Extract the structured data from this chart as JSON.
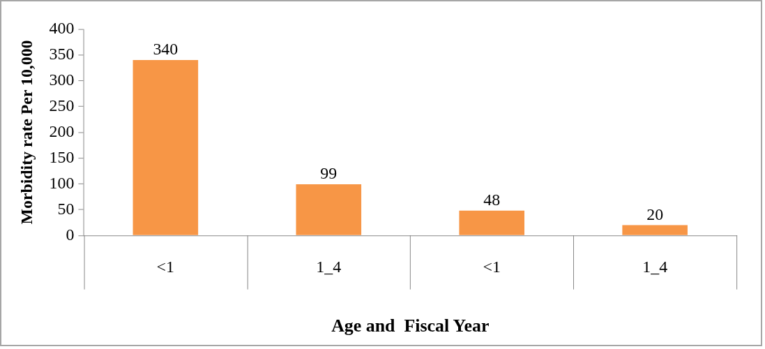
{
  "chart_data": {
    "type": "bar",
    "xlabel": "Age and  Fiscal Year",
    "ylabel": "Morbidity rate Per 10,000",
    "categories": [
      "<1",
      "1_4",
      "<1",
      "1_4"
    ],
    "values": [
      340,
      99,
      48,
      20
    ],
    "color": "#f79646",
    "ylim": [
      0,
      400
    ],
    "yticks": [
      0,
      50,
      100,
      150,
      200,
      250,
      300,
      350,
      400
    ],
    "grid": false,
    "legend": false,
    "data_labels": true
  }
}
